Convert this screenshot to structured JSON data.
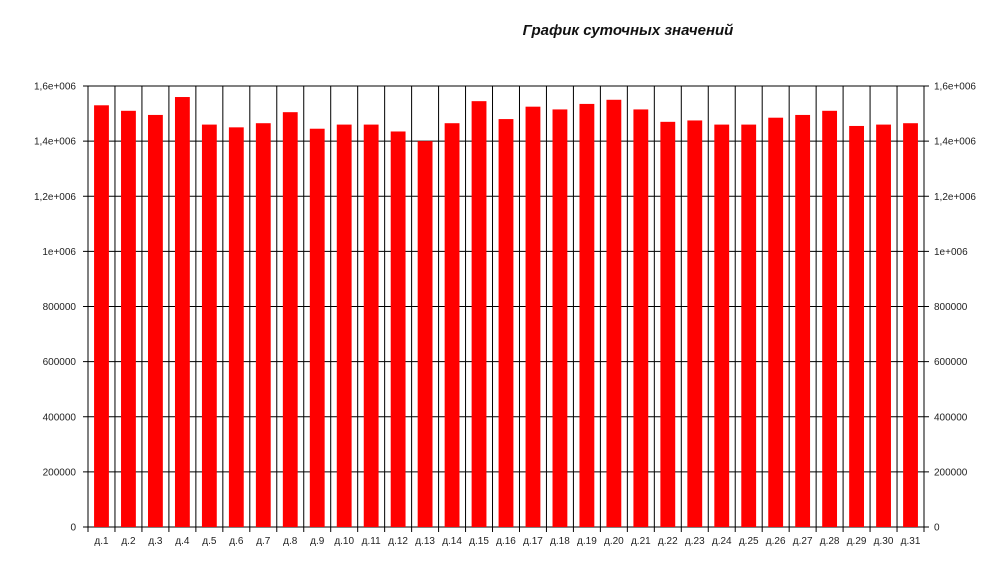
{
  "chart_data": {
    "type": "bar",
    "title": "График суточных значений",
    "categories": [
      "д.1",
      "д.2",
      "д.3",
      "д.4",
      "д.5",
      "д.6",
      "д.7",
      "д.8",
      "д.9",
      "д.10",
      "д.11",
      "д.12",
      "д.13",
      "д.14",
      "д.15",
      "д.16",
      "д.17",
      "д.18",
      "д.19",
      "д.20",
      "д.21",
      "д.22",
      "д.23",
      "д.24",
      "д.25",
      "д.26",
      "д.27",
      "д.28",
      "д.29",
      "д.30",
      "д.31"
    ],
    "values": [
      1530000,
      1510000,
      1495000,
      1560000,
      1460000,
      1450000,
      1465000,
      1505000,
      1445000,
      1460000,
      1460000,
      1435000,
      1400000,
      1465000,
      1545000,
      1480000,
      1525000,
      1515000,
      1535000,
      1550000,
      1515000,
      1470000,
      1475000,
      1460000,
      1460000,
      1485000,
      1495000,
      1510000,
      1455000,
      1460000,
      1465000
    ],
    "ylim": [
      0,
      1600000
    ],
    "yticks": [
      0,
      200000,
      400000,
      600000,
      800000,
      1000000,
      1200000,
      1400000,
      1600000
    ],
    "ytick_labels": [
      "0",
      "200000",
      "400000",
      "600000",
      "800000",
      "1e+006",
      "1,2e+006",
      "1,4e+006",
      "1,6e+006"
    ],
    "xlabel": "",
    "ylabel": "",
    "grid": true,
    "bar_color": "#ff0000",
    "grid_color": "#000000"
  }
}
